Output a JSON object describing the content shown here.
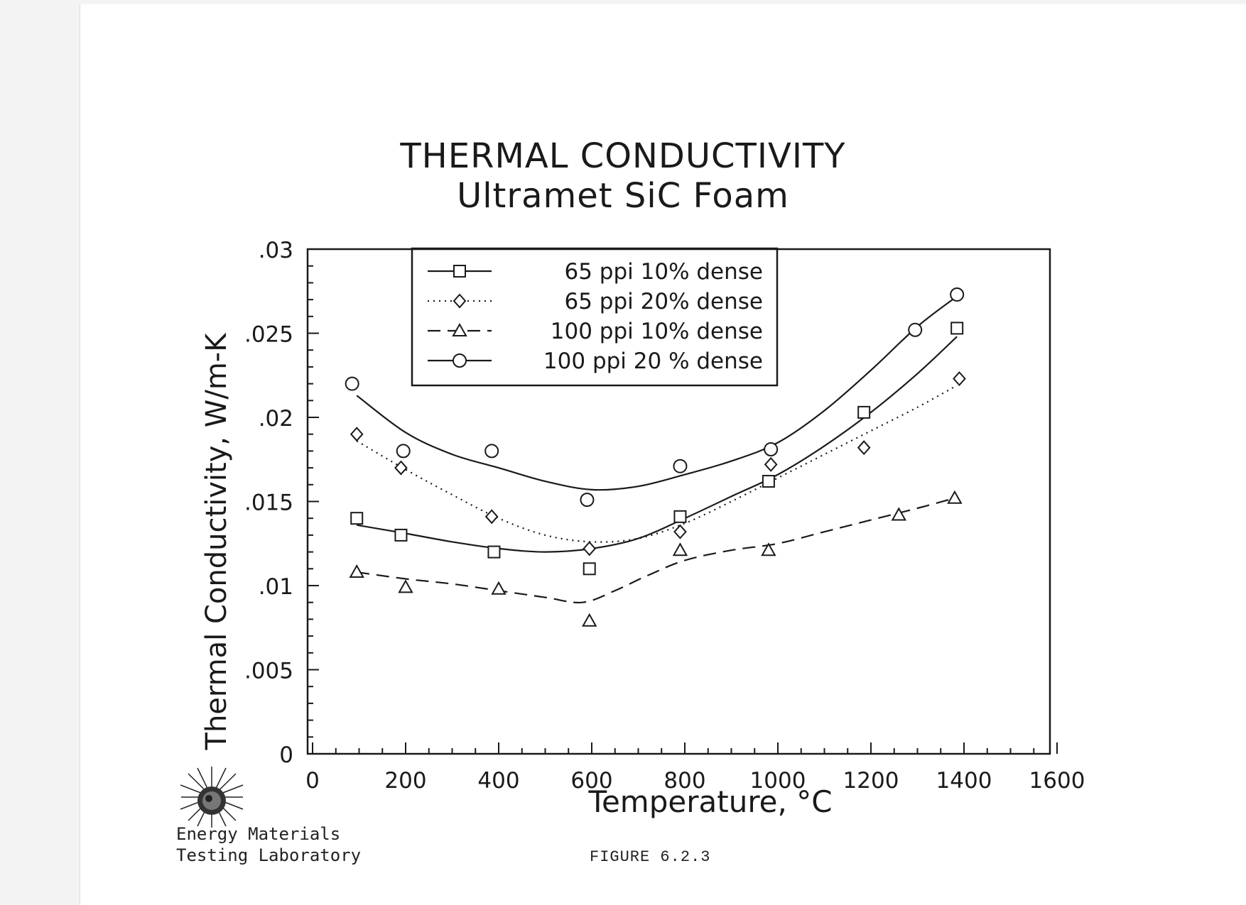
{
  "chart_data": {
    "type": "line",
    "title": "THERMAL CONDUCTIVITY",
    "subtitle": "Ultramet SiC Foam",
    "xlabel": "Temperature, °C",
    "ylabel": "Thermal Conductivity, W/m-K",
    "xlim": [
      0,
      1600
    ],
    "ylim": [
      0,
      0.03
    ],
    "xticks": [
      "0",
      "200",
      "400",
      "600",
      "800",
      "1000",
      "1200",
      "1400",
      "1600"
    ],
    "yticks": [
      "0",
      ".005",
      ".01",
      ".015",
      ".02",
      ".025",
      ".03"
    ],
    "grid": false,
    "legend_position": "top-left",
    "series": [
      {
        "name": "65 ppi 10% dense",
        "marker": "square",
        "line_style": "solid",
        "points": [
          [
            95,
            0.014
          ],
          [
            190,
            0.013
          ],
          [
            390,
            0.012
          ],
          [
            595,
            0.011
          ],
          [
            790,
            0.0141
          ],
          [
            980,
            0.0162
          ],
          [
            1185,
            0.0203
          ],
          [
            1385,
            0.0253
          ]
        ],
        "fit": [
          [
            95,
            0.0136
          ],
          [
            200,
            0.0131
          ],
          [
            300,
            0.0126
          ],
          [
            400,
            0.0122
          ],
          [
            500,
            0.012
          ],
          [
            600,
            0.0122
          ],
          [
            700,
            0.0128
          ],
          [
            800,
            0.014
          ],
          [
            900,
            0.0153
          ],
          [
            1000,
            0.0166
          ],
          [
            1100,
            0.0183
          ],
          [
            1200,
            0.0203
          ],
          [
            1300,
            0.0226
          ],
          [
            1385,
            0.0248
          ]
        ]
      },
      {
        "name": "65 ppi 20% dense",
        "marker": "diamond",
        "line_style": "dotted",
        "points": [
          [
            95,
            0.019
          ],
          [
            190,
            0.017
          ],
          [
            385,
            0.0141
          ],
          [
            595,
            0.0122
          ],
          [
            790,
            0.0132
          ],
          [
            985,
            0.0172
          ],
          [
            1185,
            0.0182
          ],
          [
            1390,
            0.0223
          ]
        ],
        "fit": [
          [
            95,
            0.0186
          ],
          [
            200,
            0.0169
          ],
          [
            300,
            0.0154
          ],
          [
            400,
            0.014
          ],
          [
            500,
            0.013
          ],
          [
            600,
            0.0126
          ],
          [
            700,
            0.0128
          ],
          [
            800,
            0.0137
          ],
          [
            900,
            0.015
          ],
          [
            1000,
            0.0164
          ],
          [
            1100,
            0.0178
          ],
          [
            1200,
            0.0192
          ],
          [
            1300,
            0.0206
          ],
          [
            1385,
            0.0219
          ]
        ]
      },
      {
        "name": "100 ppi 10% dense",
        "marker": "triangle",
        "line_style": "dashed",
        "points": [
          [
            95,
            0.0108
          ],
          [
            200,
            0.0099
          ],
          [
            400,
            0.0098
          ],
          [
            595,
            0.0079
          ],
          [
            790,
            0.0121
          ],
          [
            980,
            0.0121
          ],
          [
            1260,
            0.0142
          ],
          [
            1380,
            0.0152
          ]
        ],
        "fit": [
          [
            95,
            0.0108
          ],
          [
            200,
            0.0104
          ],
          [
            300,
            0.0101
          ],
          [
            400,
            0.0097
          ],
          [
            500,
            0.0093
          ],
          [
            580,
            0.009
          ],
          [
            650,
            0.0097
          ],
          [
            720,
            0.0106
          ],
          [
            800,
            0.0115
          ],
          [
            900,
            0.0121
          ],
          [
            1000,
            0.0125
          ],
          [
            1100,
            0.0132
          ],
          [
            1200,
            0.0139
          ],
          [
            1300,
            0.0146
          ],
          [
            1380,
            0.0152
          ]
        ]
      },
      {
        "name": "100 ppi 20 % dense",
        "marker": "circle",
        "line_style": "solid",
        "points": [
          [
            85,
            0.022
          ],
          [
            195,
            0.018
          ],
          [
            385,
            0.018
          ],
          [
            590,
            0.0151
          ],
          [
            790,
            0.0171
          ],
          [
            985,
            0.0181
          ],
          [
            1295,
            0.0252
          ],
          [
            1385,
            0.0273
          ]
        ],
        "fit": [
          [
            95,
            0.0213
          ],
          [
            200,
            0.0191
          ],
          [
            300,
            0.0178
          ],
          [
            400,
            0.017
          ],
          [
            500,
            0.0162
          ],
          [
            600,
            0.0157
          ],
          [
            700,
            0.0159
          ],
          [
            800,
            0.0166
          ],
          [
            900,
            0.0174
          ],
          [
            1000,
            0.0185
          ],
          [
            1100,
            0.0204
          ],
          [
            1200,
            0.0228
          ],
          [
            1300,
            0.0254
          ],
          [
            1385,
            0.0272
          ]
        ]
      }
    ]
  },
  "footer": {
    "lab_line1": "Energy Materials",
    "lab_line2": "Testing Laboratory",
    "figure_label": "FIGURE 6.2.3"
  },
  "colors": {
    "ink": "#1a1a1a",
    "paper": "#ffffff",
    "scan_edge": "#f3f3f3"
  }
}
